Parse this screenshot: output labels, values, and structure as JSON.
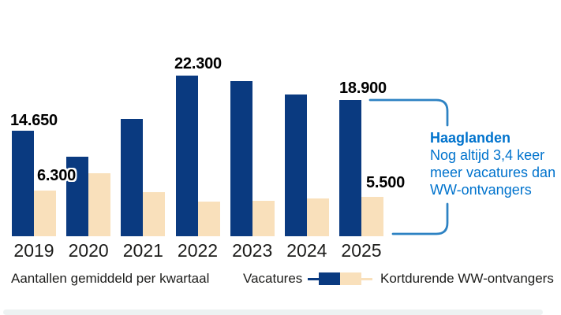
{
  "chart_data": {
    "type": "bar",
    "title": "",
    "categories": [
      "2019",
      "2020",
      "2021",
      "2022",
      "2023",
      "2024",
      "2025"
    ],
    "series": [
      {
        "name": "Vacatures",
        "color": "#0a3a80",
        "values": [
          14650,
          11000,
          16300,
          22300,
          21500,
          19700,
          18900
        ]
      },
      {
        "name": "Kortdurende WW-ontvangers",
        "color": "#f9e0bb",
        "values": [
          6300,
          8700,
          6100,
          4800,
          4900,
          5200,
          5500
        ]
      }
    ],
    "value_labels": {
      "vacatures_2019": "14.650",
      "ww_2019": "6.300",
      "vacatures_2022": "22.300",
      "vacatures_2025": "18.900",
      "ww_2025": "5.500"
    },
    "ylim": [
      0,
      23000
    ],
    "grid": false,
    "legend_position": "bottom"
  },
  "annotation": {
    "title": "Haaglanden",
    "lines": [
      "Nog altijd 3,4 keer",
      "meer vacatures dan",
      "WW-ontvangers"
    ],
    "text_color": "#0073cd",
    "bracket_color": "#2d82c3"
  },
  "footer": {
    "note": "Aantallen gemiddeld per kwartaal",
    "legend_left": "Vacatures",
    "legend_right": "Kortdurende WW-ontvangers"
  }
}
